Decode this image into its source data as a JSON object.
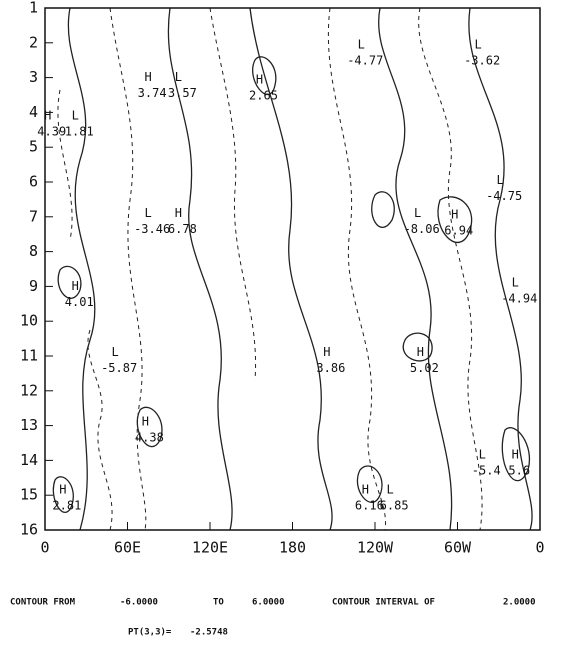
{
  "chart_data": {
    "type": "contour",
    "xlim": [
      0,
      360
    ],
    "xticks": [
      0,
      {
        "value": 60,
        "label": "60E"
      },
      {
        "value": 120,
        "label": "120E"
      },
      180,
      {
        "value": 240,
        "label": "120W"
      },
      {
        "value": 300,
        "label": "60W"
      },
      {
        "value": 360,
        "label": "0"
      }
    ],
    "ylim": [
      1,
      16
    ],
    "yinverted": true,
    "yticks": [
      1,
      2,
      3,
      4,
      5,
      6,
      7,
      8,
      9,
      10,
      11,
      12,
      13,
      14,
      15,
      16
    ],
    "annotations": [
      {
        "label": "L",
        "value": -4.77,
        "x": 230,
        "y": 2.06
      },
      {
        "label": "L",
        "value": -3.62,
        "x": 315,
        "y": 2.06
      },
      {
        "label": "H",
        "value": 3.74,
        "x": 75,
        "y": 3.0
      },
      {
        "label": "L",
        "value": 3.57,
        "x": 97,
        "y": 3.0
      },
      {
        "label": "H",
        "value": 2.65,
        "x": 156,
        "y": 3.07
      },
      {
        "label": "H",
        "value": 4.39,
        "x": 2,
        "y": 4.1
      },
      {
        "label": "L",
        "value": 1.81,
        "x": 22,
        "y": 4.1
      },
      {
        "label": "L",
        "value": -4.75,
        "x": 331,
        "y": 5.95
      },
      {
        "label": "L",
        "value": -3.46,
        "x": 75,
        "y": 6.9
      },
      {
        "label": "H",
        "value": 6.78,
        "x": 97,
        "y": 6.9
      },
      {
        "label": "L",
        "value": -8.06,
        "x": 271,
        "y": 6.9
      },
      {
        "label": "H",
        "value": 6.94,
        "x": 298,
        "y": 6.95
      },
      {
        "label": "H",
        "value": 4.01,
        "x": 22,
        "y": 9.0
      },
      {
        "label": "L",
        "value": -4.94,
        "x": 342,
        "y": 8.9
      },
      {
        "label": "L",
        "value": -5.87,
        "x": 51,
        "y": 10.9
      },
      {
        "label": "H",
        "value": 3.86,
        "x": 205,
        "y": 10.9
      },
      {
        "label": "H",
        "value": 5.02,
        "x": 273,
        "y": 10.9
      },
      {
        "label": "H",
        "value": 4.38,
        "x": 73,
        "y": 12.9
      },
      {
        "label": "L",
        "value": -5.4,
        "x": 318,
        "y": 13.85
      },
      {
        "label": "H",
        "value": 5.6,
        "x": 342,
        "y": 13.85
      },
      {
        "label": "H",
        "value": 6.16,
        "x": 233,
        "y": 14.85
      },
      {
        "label": "L",
        "value": 6.85,
        "x": 251,
        "y": 14.85
      },
      {
        "label": "H",
        "value": 2.81,
        "x": 13,
        "y": 14.85
      }
    ]
  },
  "footer": {
    "from_label": "CONTOUR FROM",
    "from": "-6.0000",
    "to_label": "TO",
    "to": "6.0000",
    "interval_label": "CONTOUR INTERVAL OF",
    "interval": "2.0000",
    "point_label": "PT(3,3)=",
    "point": "-2.5748"
  }
}
